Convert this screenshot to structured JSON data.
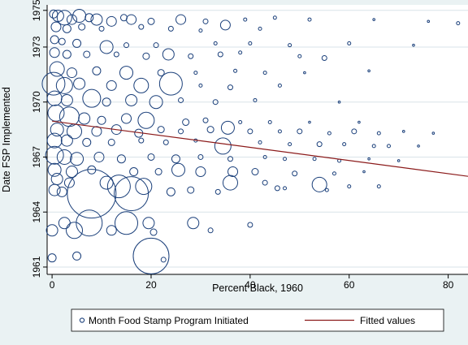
{
  "chart_data": {
    "type": "scatter",
    "title": "",
    "xlabel": "Percent Black, 1960",
    "ylabel": "Date FSP Implemented",
    "xlim": [
      -1,
      84
    ],
    "ylim": [
      1960.6,
      1975.3
    ],
    "x_ticks": [
      0,
      20,
      40,
      60,
      80
    ],
    "y_ticks": [
      1961,
      1964,
      1967,
      1970,
      1973,
      1975
    ],
    "x_tick_labels": [
      "0",
      "20",
      "40",
      "60",
      "80"
    ],
    "y_tick_labels": [
      "1961",
      "1964",
      "1967",
      "1970",
      "1973",
      "1975"
    ],
    "grid": "horizontal",
    "legend_position": "bottom",
    "colors": {
      "marker": "#1a3f7a",
      "fit": "#8b1a1a",
      "plot_bg": "#ffffff",
      "outer_bg": "#eaf2f3"
    },
    "series": [
      {
        "name": "Month Food Stamp Program Initiated",
        "type": "scatter",
        "marker": "hollow-circle",
        "note_size": "marker area weighted by population",
        "points": [
          {
            "x": 0.3,
            "y": 1974.8,
            "s": 5
          },
          {
            "x": 1.2,
            "y": 1974.7,
            "s": 7
          },
          {
            "x": 2.5,
            "y": 1974.6,
            "s": 9
          },
          {
            "x": 4.0,
            "y": 1974.5,
            "s": 6
          },
          {
            "x": 5.5,
            "y": 1974.7,
            "s": 8
          },
          {
            "x": 7.5,
            "y": 1974.6,
            "s": 5
          },
          {
            "x": 9.0,
            "y": 1974.5,
            "s": 7
          },
          {
            "x": 12.0,
            "y": 1974.4,
            "s": 6
          },
          {
            "x": 14.5,
            "y": 1974.6,
            "s": 4
          },
          {
            "x": 16.0,
            "y": 1974.5,
            "s": 6
          },
          {
            "x": 20.0,
            "y": 1974.4,
            "s": 4
          },
          {
            "x": 26.0,
            "y": 1974.5,
            "s": 6
          },
          {
            "x": 31.0,
            "y": 1974.4,
            "s": 3
          },
          {
            "x": 35.0,
            "y": 1974.2,
            "s": 6
          },
          {
            "x": 39.0,
            "y": 1974.5,
            "s": 2
          },
          {
            "x": 45.0,
            "y": 1974.6,
            "s": 2
          },
          {
            "x": 52.0,
            "y": 1974.5,
            "s": 2
          },
          {
            "x": 65.0,
            "y": 1974.5,
            "s": 1
          },
          {
            "x": 76.0,
            "y": 1974.4,
            "s": 1
          },
          {
            "x": 82.0,
            "y": 1974.3,
            "s": 2
          },
          {
            "x": 0.8,
            "y": 1974.1,
            "s": 6
          },
          {
            "x": 3.0,
            "y": 1974.0,
            "s": 5
          },
          {
            "x": 6.0,
            "y": 1974.1,
            "s": 4
          },
          {
            "x": 10.0,
            "y": 1974.0,
            "s": 3
          },
          {
            "x": 18.0,
            "y": 1974.1,
            "s": 3
          },
          {
            "x": 24.0,
            "y": 1974.0,
            "s": 3
          },
          {
            "x": 30.0,
            "y": 1973.9,
            "s": 2
          },
          {
            "x": 42.0,
            "y": 1974.0,
            "s": 2
          },
          {
            "x": 0.5,
            "y": 1973.4,
            "s": 5
          },
          {
            "x": 2.0,
            "y": 1973.3,
            "s": 4
          },
          {
            "x": 5.0,
            "y": 1973.2,
            "s": 5
          },
          {
            "x": 11.0,
            "y": 1973.0,
            "s": 8
          },
          {
            "x": 15.0,
            "y": 1973.1,
            "s": 3
          },
          {
            "x": 21.0,
            "y": 1973.1,
            "s": 3
          },
          {
            "x": 33.0,
            "y": 1973.2,
            "s": 2
          },
          {
            "x": 40.0,
            "y": 1973.2,
            "s": 2
          },
          {
            "x": 48.0,
            "y": 1973.1,
            "s": 2
          },
          {
            "x": 60.0,
            "y": 1973.2,
            "s": 2
          },
          {
            "x": 73.0,
            "y": 1973.1,
            "s": 1
          },
          {
            "x": 0.5,
            "y": 1972.7,
            "s": 6
          },
          {
            "x": 3.0,
            "y": 1972.6,
            "s": 5
          },
          {
            "x": 7.0,
            "y": 1972.6,
            "s": 4
          },
          {
            "x": 13.0,
            "y": 1972.6,
            "s": 3
          },
          {
            "x": 19.0,
            "y": 1972.5,
            "s": 4
          },
          {
            "x": 23.5,
            "y": 1972.6,
            "s": 7
          },
          {
            "x": 28.0,
            "y": 1972.5,
            "s": 3
          },
          {
            "x": 34.0,
            "y": 1972.6,
            "s": 3
          },
          {
            "x": 38.0,
            "y": 1972.7,
            "s": 2
          },
          {
            "x": 50.0,
            "y": 1972.5,
            "s": 2
          },
          {
            "x": 55.0,
            "y": 1972.4,
            "s": 3
          },
          {
            "x": 1.0,
            "y": 1971.8,
            "s": 9
          },
          {
            "x": 4.0,
            "y": 1971.6,
            "s": 6
          },
          {
            "x": 9.0,
            "y": 1971.7,
            "s": 5
          },
          {
            "x": 15.0,
            "y": 1971.6,
            "s": 8
          },
          {
            "x": 22.0,
            "y": 1971.6,
            "s": 4
          },
          {
            "x": 29.0,
            "y": 1971.6,
            "s": 2
          },
          {
            "x": 37.0,
            "y": 1971.7,
            "s": 2
          },
          {
            "x": 43.0,
            "y": 1971.6,
            "s": 2
          },
          {
            "x": 51.0,
            "y": 1971.6,
            "s": 1
          },
          {
            "x": 64.0,
            "y": 1971.7,
            "s": 1
          },
          {
            "x": 0.3,
            "y": 1971.0,
            "s": 14
          },
          {
            "x": 2.5,
            "y": 1970.9,
            "s": 10
          },
          {
            "x": 5.5,
            "y": 1971.0,
            "s": 7
          },
          {
            "x": 12.0,
            "y": 1970.9,
            "s": 6
          },
          {
            "x": 18.0,
            "y": 1970.9,
            "s": 9
          },
          {
            "x": 24.0,
            "y": 1971.0,
            "s": 14
          },
          {
            "x": 30.0,
            "y": 1970.9,
            "s": 2
          },
          {
            "x": 36.0,
            "y": 1970.8,
            "s": 3
          },
          {
            "x": 46.0,
            "y": 1970.9,
            "s": 2
          },
          {
            "x": 0.5,
            "y": 1970.2,
            "s": 9
          },
          {
            "x": 3.0,
            "y": 1970.1,
            "s": 7
          },
          {
            "x": 8.0,
            "y": 1970.2,
            "s": 11
          },
          {
            "x": 11.0,
            "y": 1970.0,
            "s": 5
          },
          {
            "x": 16.0,
            "y": 1970.1,
            "s": 7
          },
          {
            "x": 21.0,
            "y": 1970.0,
            "s": 8
          },
          {
            "x": 26.0,
            "y": 1970.1,
            "s": 3
          },
          {
            "x": 33.0,
            "y": 1970.0,
            "s": 3
          },
          {
            "x": 41.0,
            "y": 1970.1,
            "s": 2
          },
          {
            "x": 58.0,
            "y": 1970.0,
            "s": 1
          },
          {
            "x": 0.8,
            "y": 1969.4,
            "s": 10
          },
          {
            "x": 3.5,
            "y": 1969.2,
            "s": 12
          },
          {
            "x": 6.5,
            "y": 1969.1,
            "s": 7
          },
          {
            "x": 10.0,
            "y": 1969.0,
            "s": 5
          },
          {
            "x": 15.0,
            "y": 1969.1,
            "s": 6
          },
          {
            "x": 19.0,
            "y": 1969.0,
            "s": 10
          },
          {
            "x": 27.0,
            "y": 1968.9,
            "s": 4
          },
          {
            "x": 31.0,
            "y": 1969.0,
            "s": 3
          },
          {
            "x": 38.0,
            "y": 1968.9,
            "s": 2
          },
          {
            "x": 44.0,
            "y": 1968.9,
            "s": 2
          },
          {
            "x": 52.0,
            "y": 1968.9,
            "s": 1
          },
          {
            "x": 62.0,
            "y": 1968.9,
            "s": 1
          },
          {
            "x": 1.0,
            "y": 1968.5,
            "s": 8
          },
          {
            "x": 4.5,
            "y": 1968.4,
            "s": 9
          },
          {
            "x": 9.0,
            "y": 1968.4,
            "s": 6
          },
          {
            "x": 13.0,
            "y": 1968.5,
            "s": 6
          },
          {
            "x": 17.5,
            "y": 1968.3,
            "s": 5
          },
          {
            "x": 22.0,
            "y": 1968.5,
            "s": 4
          },
          {
            "x": 26.0,
            "y": 1968.4,
            "s": 3
          },
          {
            "x": 32.0,
            "y": 1968.5,
            "s": 4
          },
          {
            "x": 35.5,
            "y": 1968.6,
            "s": 8
          },
          {
            "x": 40.0,
            "y": 1968.4,
            "s": 3
          },
          {
            "x": 46.0,
            "y": 1968.4,
            "s": 2
          },
          {
            "x": 50.0,
            "y": 1968.4,
            "s": 3
          },
          {
            "x": 56.0,
            "y": 1968.3,
            "s": 2
          },
          {
            "x": 61.0,
            "y": 1968.4,
            "s": 3
          },
          {
            "x": 66.0,
            "y": 1968.3,
            "s": 2
          },
          {
            "x": 71.0,
            "y": 1968.4,
            "s": 1
          },
          {
            "x": 77.0,
            "y": 1968.3,
            "s": 1
          },
          {
            "x": 0.5,
            "y": 1967.9,
            "s": 9
          },
          {
            "x": 3.0,
            "y": 1967.9,
            "s": 7
          },
          {
            "x": 7.0,
            "y": 1967.8,
            "s": 5
          },
          {
            "x": 12.0,
            "y": 1967.8,
            "s": 4
          },
          {
            "x": 18.0,
            "y": 1967.9,
            "s": 3
          },
          {
            "x": 23.0,
            "y": 1967.8,
            "s": 3
          },
          {
            "x": 29.0,
            "y": 1967.9,
            "s": 2
          },
          {
            "x": 34.5,
            "y": 1967.6,
            "s": 10
          },
          {
            "x": 42.0,
            "y": 1967.8,
            "s": 2
          },
          {
            "x": 48.0,
            "y": 1967.7,
            "s": 2
          },
          {
            "x": 54.0,
            "y": 1967.7,
            "s": 3
          },
          {
            "x": 59.0,
            "y": 1967.7,
            "s": 2
          },
          {
            "x": 65.0,
            "y": 1967.6,
            "s": 2
          },
          {
            "x": 68.0,
            "y": 1967.6,
            "s": 2
          },
          {
            "x": 74.0,
            "y": 1967.6,
            "s": 1
          },
          {
            "x": 0.5,
            "y": 1967.1,
            "s": 11
          },
          {
            "x": 2.5,
            "y": 1967.0,
            "s": 9
          },
          {
            "x": 5.0,
            "y": 1966.9,
            "s": 8
          },
          {
            "x": 9.5,
            "y": 1967.0,
            "s": 6
          },
          {
            "x": 14.0,
            "y": 1966.9,
            "s": 5
          },
          {
            "x": 20.0,
            "y": 1967.0,
            "s": 4
          },
          {
            "x": 25.0,
            "y": 1966.9,
            "s": 5
          },
          {
            "x": 30.0,
            "y": 1967.0,
            "s": 3
          },
          {
            "x": 36.0,
            "y": 1966.9,
            "s": 3
          },
          {
            "x": 43.0,
            "y": 1967.0,
            "s": 2
          },
          {
            "x": 47.0,
            "y": 1966.9,
            "s": 2
          },
          {
            "x": 53.0,
            "y": 1966.9,
            "s": 2
          },
          {
            "x": 58.0,
            "y": 1966.8,
            "s": 2
          },
          {
            "x": 64.0,
            "y": 1966.9,
            "s": 1
          },
          {
            "x": 70.0,
            "y": 1966.8,
            "s": 1
          },
          {
            "x": 0.5,
            "y": 1966.3,
            "s": 8
          },
          {
            "x": 4.0,
            "y": 1966.2,
            "s": 7
          },
          {
            "x": 8.0,
            "y": 1966.3,
            "s": 5
          },
          {
            "x": 16.5,
            "y": 1966.2,
            "s": 5
          },
          {
            "x": 21.5,
            "y": 1966.2,
            "s": 4
          },
          {
            "x": 25.5,
            "y": 1966.3,
            "s": 8
          },
          {
            "x": 30.0,
            "y": 1966.2,
            "s": 6
          },
          {
            "x": 36.5,
            "y": 1966.2,
            "s": 6
          },
          {
            "x": 41.0,
            "y": 1966.2,
            "s": 4
          },
          {
            "x": 49.0,
            "y": 1966.1,
            "s": 3
          },
          {
            "x": 57.0,
            "y": 1966.1,
            "s": 2
          },
          {
            "x": 63.0,
            "y": 1966.2,
            "s": 1
          },
          {
            "x": 1.0,
            "y": 1965.8,
            "s": 7
          },
          {
            "x": 3.5,
            "y": 1965.6,
            "s": 6
          },
          {
            "x": 11.0,
            "y": 1965.6,
            "s": 8
          },
          {
            "x": 13.5,
            "y": 1965.4,
            "s": 14
          },
          {
            "x": 18.5,
            "y": 1965.4,
            "s": 10
          },
          {
            "x": 36.0,
            "y": 1965.6,
            "s": 9
          },
          {
            "x": 43.0,
            "y": 1965.6,
            "s": 3
          },
          {
            "x": 47.0,
            "y": 1965.3,
            "s": 2
          },
          {
            "x": 54.0,
            "y": 1965.5,
            "s": 9
          },
          {
            "x": 60.0,
            "y": 1965.4,
            "s": 2
          },
          {
            "x": 66.0,
            "y": 1965.4,
            "s": 2
          },
          {
            "x": 0.5,
            "y": 1965.2,
            "s": 7
          },
          {
            "x": 2.0,
            "y": 1965.1,
            "s": 6
          },
          {
            "x": 8.0,
            "y": 1965.0,
            "s": 30
          },
          {
            "x": 16.0,
            "y": 1965.0,
            "s": 21
          },
          {
            "x": 24.0,
            "y": 1965.1,
            "s": 5
          },
          {
            "x": 28.0,
            "y": 1965.2,
            "s": 4
          },
          {
            "x": 33.5,
            "y": 1965.1,
            "s": 3
          },
          {
            "x": 45.5,
            "y": 1965.3,
            "s": 3
          },
          {
            "x": 55.5,
            "y": 1965.2,
            "s": 2
          },
          {
            "x": 2.5,
            "y": 1963.4,
            "s": 7
          },
          {
            "x": 7.5,
            "y": 1963.4,
            "s": 16
          },
          {
            "x": 15.0,
            "y": 1963.4,
            "s": 14
          },
          {
            "x": 19.5,
            "y": 1963.4,
            "s": 7
          },
          {
            "x": 28.5,
            "y": 1963.4,
            "s": 7
          },
          {
            "x": 40.0,
            "y": 1963.3,
            "s": 3
          },
          {
            "x": 0.0,
            "y": 1963.0,
            "s": 7
          },
          {
            "x": 4.5,
            "y": 1963.0,
            "s": 10
          },
          {
            "x": 12.0,
            "y": 1963.0,
            "s": 6
          },
          {
            "x": 20.5,
            "y": 1962.9,
            "s": 4
          },
          {
            "x": 32.0,
            "y": 1963.0,
            "s": 3
          },
          {
            "x": 0.0,
            "y": 1961.5,
            "s": 5
          },
          {
            "x": 5.0,
            "y": 1961.6,
            "s": 5
          },
          {
            "x": 20.0,
            "y": 1961.6,
            "s": 22
          },
          {
            "x": 22.5,
            "y": 1961.4,
            "s": 3
          }
        ]
      },
      {
        "name": "Fitted values",
        "type": "line",
        "x": [
          0,
          84
        ],
        "y": [
          1968.96,
          1965.95
        ]
      }
    ],
    "legend": [
      "Month Food Stamp Program Initiated",
      "Fitted values"
    ]
  }
}
